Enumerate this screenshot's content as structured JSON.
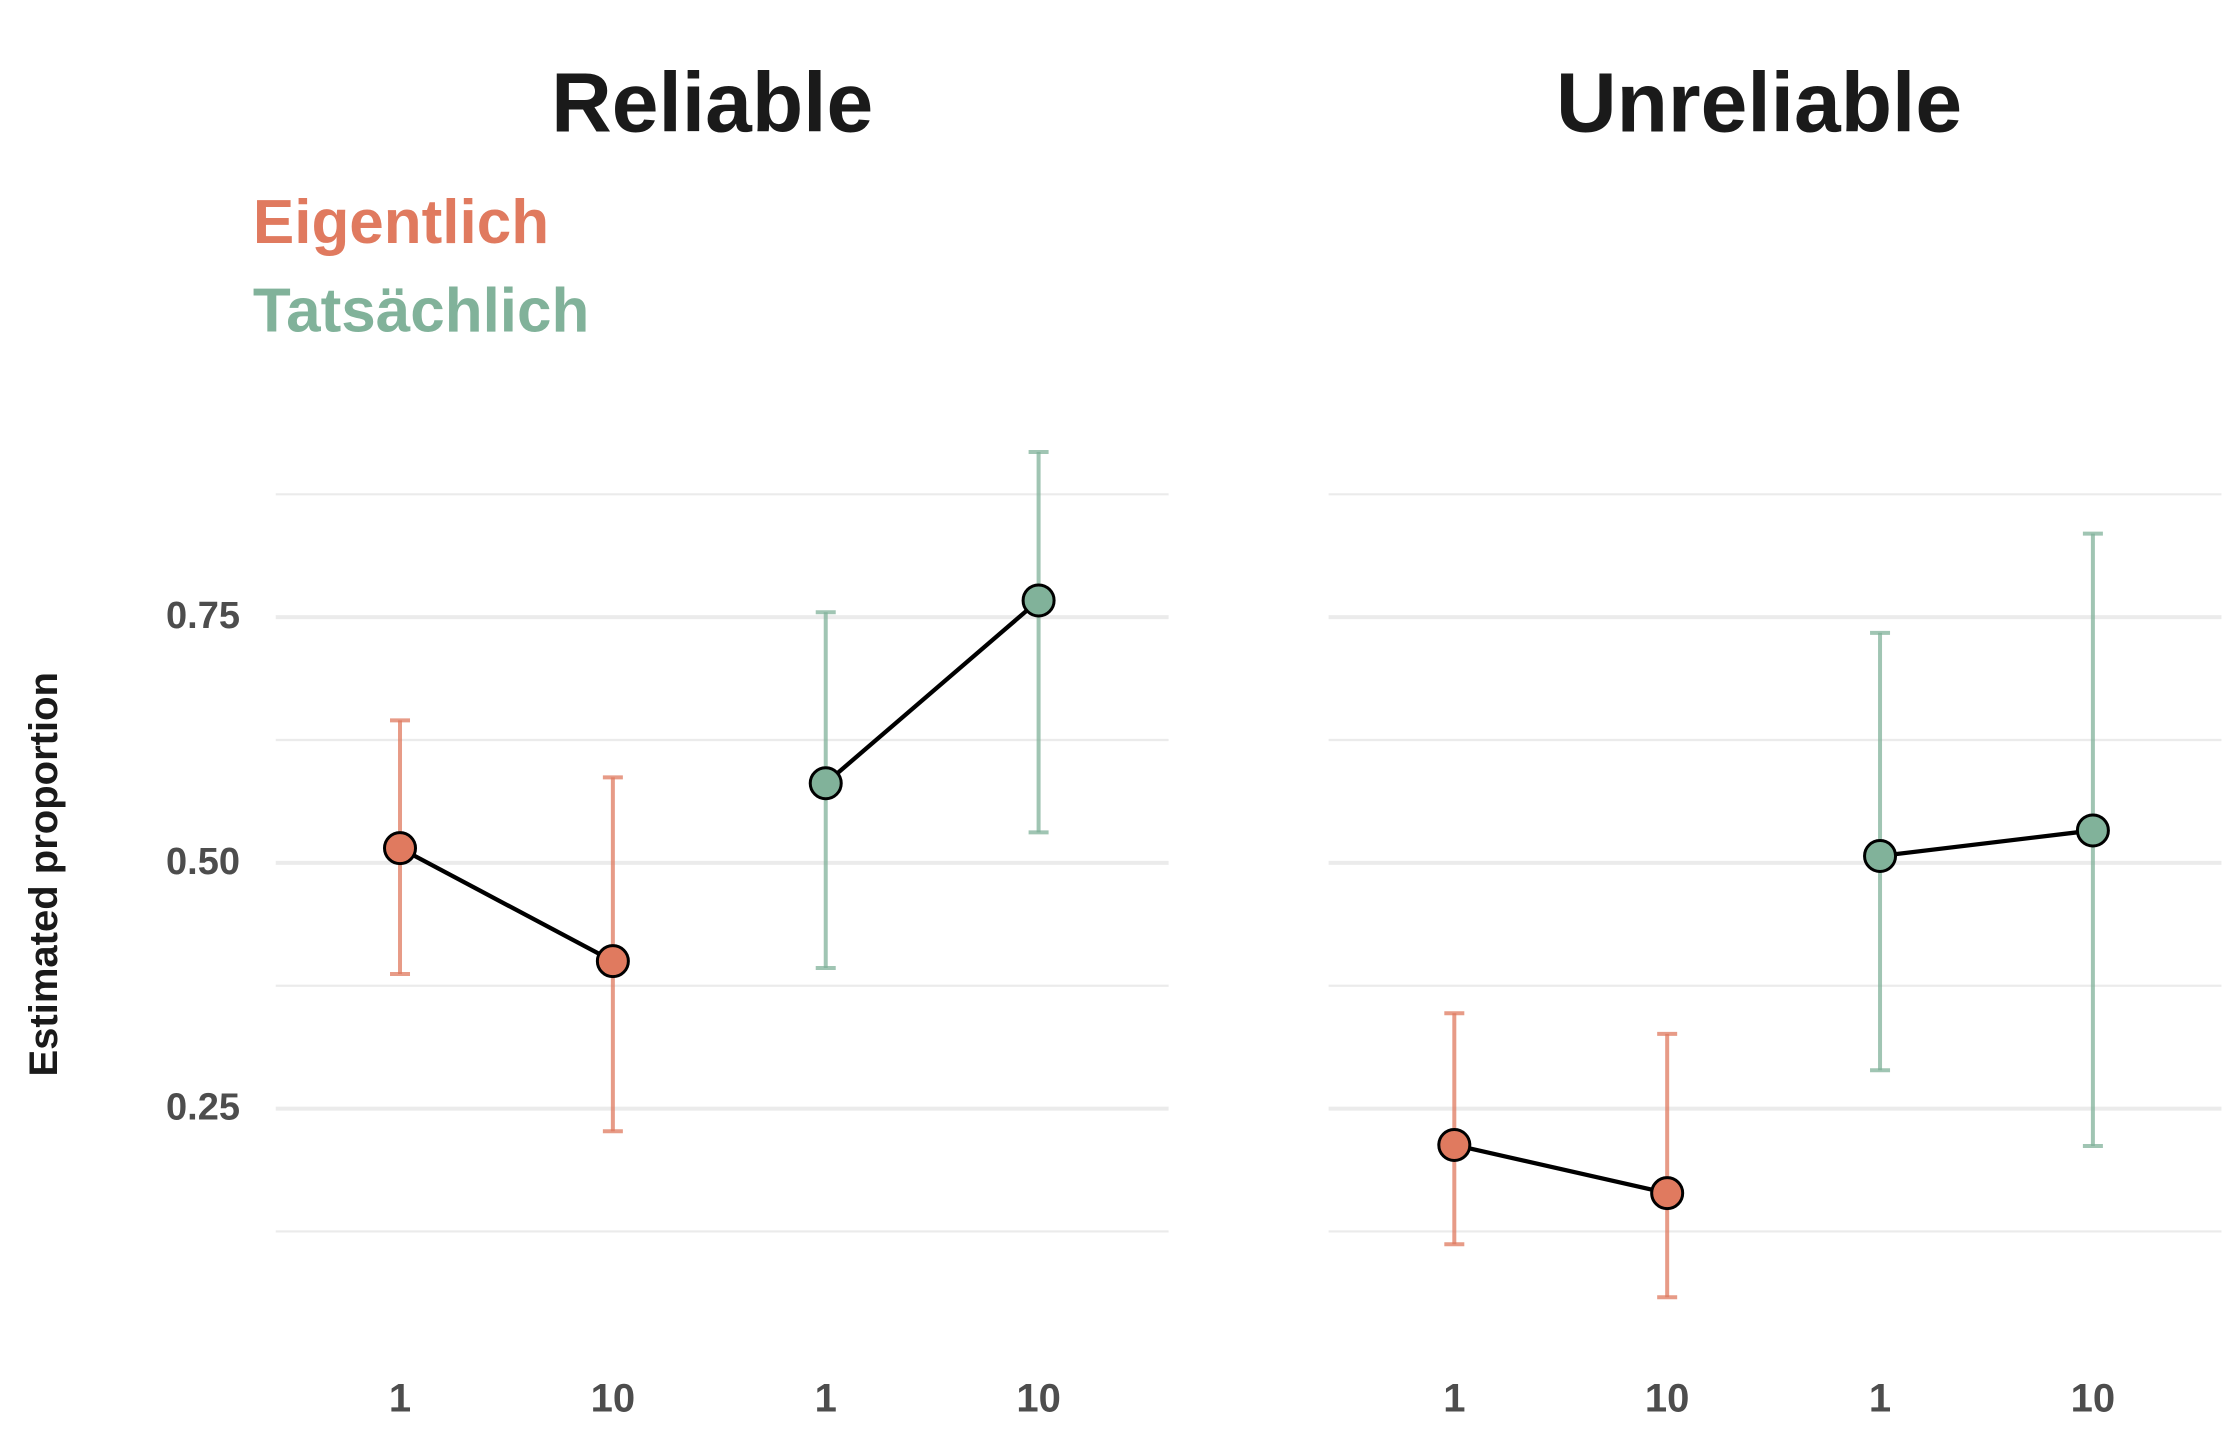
{
  "chart_data": {
    "type": "scatter",
    "ylabel": "Estimated proportion",
    "y_ticks": [
      0.25,
      0.5,
      0.75
    ],
    "y_tick_labels": [
      "0.25",
      "0.50",
      "0.75"
    ],
    "ylim": [
      0.07,
      0.97
    ],
    "grid": true,
    "legend_position": "top-left",
    "legend": [
      {
        "name": "Eigentlich",
        "color": "#e07a5f"
      },
      {
        "name": "Tatsächlich",
        "color": "#81b29a"
      }
    ],
    "colors": {
      "line": "#000000",
      "grid": "#ebebeb",
      "text": "#1a1a1a",
      "tick": "#4d4d4d"
    },
    "panels": [
      {
        "title": "Reliable",
        "x_tick_labels": [
          "1",
          "10",
          "1",
          "10"
        ],
        "groups": [
          {
            "series": "Eigentlich",
            "points": [
              {
                "x": "1",
                "y": 0.515,
                "lo": 0.387,
                "hi": 0.645
              },
              {
                "x": "10",
                "y": 0.4,
                "lo": 0.227,
                "hi": 0.587
              }
            ]
          },
          {
            "series": "Tatsächlich",
            "points": [
              {
                "x": "1",
                "y": 0.581,
                "lo": 0.393,
                "hi": 0.755
              },
              {
                "x": "10",
                "y": 0.767,
                "lo": 0.531,
                "hi": 0.918
              }
            ]
          }
        ]
      },
      {
        "title": "Unreliable",
        "x_tick_labels": [
          "1",
          "10",
          "1",
          "10"
        ],
        "groups": [
          {
            "series": "Eigentlich",
            "points": [
              {
                "x": "1",
                "y": 0.213,
                "lo": 0.112,
                "hi": 0.347
              },
              {
                "x": "10",
                "y": 0.164,
                "lo": 0.058,
                "hi": 0.326
              }
            ]
          },
          {
            "series": "Tatsächlich",
            "points": [
              {
                "x": "1",
                "y": 0.507,
                "lo": 0.289,
                "hi": 0.734
              },
              {
                "x": "10",
                "y": 0.533,
                "lo": 0.212,
                "hi": 0.835
              }
            ]
          }
        ]
      }
    ]
  }
}
